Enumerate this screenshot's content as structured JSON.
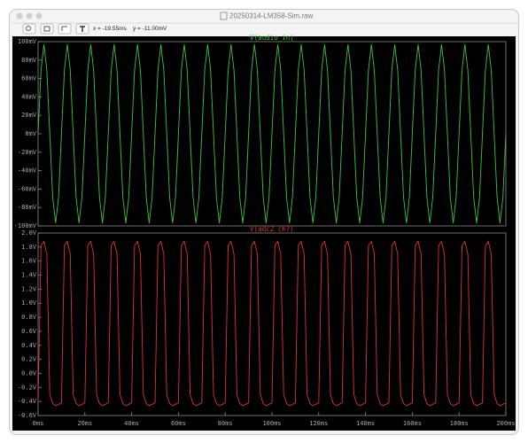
{
  "window": {
    "title": "20250314-LM358-Sim.raw",
    "cursor_x": "x = -19.55ms",
    "cursor_y": "y = -11.00mV"
  },
  "chart_data": [
    {
      "type": "line",
      "xlim": [
        0,
        200
      ],
      "ylim": [
        -100,
        100
      ],
      "yticks": [
        {
          "value": -100,
          "label": "-100mV"
        },
        {
          "value": -80,
          "label": "-80mV"
        },
        {
          "value": -60,
          "label": "-60mV"
        },
        {
          "value": -40,
          "label": "-40mV"
        },
        {
          "value": -20,
          "label": "-20mV"
        },
        {
          "value": 0,
          "label": "0mV"
        },
        {
          "value": 20,
          "label": "20mV"
        },
        {
          "value": 40,
          "label": "40mV"
        },
        {
          "value": 60,
          "label": "60mV"
        },
        {
          "value": 80,
          "label": "80mV"
        },
        {
          "value": 100,
          "label": "100mV"
        }
      ],
      "x": [
        0,
        1.25,
        2.5,
        3.75,
        5,
        6.25,
        7.5,
        8.75,
        10,
        11.25,
        12.5,
        13.75,
        15,
        16.25,
        17.5,
        18.75,
        20,
        21.25,
        22.5,
        23.75,
        25,
        26.25,
        27.5,
        28.75,
        30,
        31.25,
        32.5,
        33.75,
        35,
        36.25,
        37.5,
        38.75,
        40,
        41.25,
        42.5,
        43.75,
        45,
        46.25,
        47.5,
        48.75,
        50,
        51.25,
        52.5,
        53.75,
        55,
        56.25,
        57.5,
        58.75,
        60,
        61.25,
        62.5,
        63.75,
        65,
        66.25,
        67.5,
        68.75,
        70,
        71.25,
        72.5,
        73.75,
        75,
        76.25,
        77.5,
        78.75,
        80,
        81.25,
        82.5,
        83.75,
        85,
        86.25,
        87.5,
        88.75,
        90,
        91.25,
        92.5,
        93.75,
        95,
        96.25,
        97.5,
        98.75,
        100,
        101.25,
        102.5,
        103.75,
        105,
        106.25,
        107.5,
        108.75,
        110,
        111.25,
        112.5,
        113.75,
        115,
        116.25,
        117.5,
        118.75,
        120,
        121.25,
        122.5,
        123.75,
        125,
        126.25,
        127.5,
        128.75,
        130,
        131.25,
        132.5,
        133.75,
        135,
        136.25,
        137.5,
        138.75,
        140,
        141.25,
        142.5,
        143.75,
        145,
        146.25,
        147.5,
        148.75,
        150,
        151.25,
        152.5,
        153.75,
        155,
        156.25,
        157.5,
        158.75,
        160,
        161.25,
        162.5,
        163.75,
        165,
        166.25,
        167.5,
        168.75,
        170,
        171.25,
        172.5,
        173.75,
        175,
        176.25,
        177.5,
        178.75,
        180,
        181.25,
        182.5,
        183.75,
        185,
        186.25,
        187.5,
        188.75,
        190,
        191.25,
        192.5,
        193.75,
        195,
        196.25,
        197.5,
        198.75,
        200
      ],
      "series": [
        {
          "name": "V(audio_in)",
          "color": "#3fc23f",
          "values": [
            0,
            69,
            97,
            69,
            0,
            -69,
            -97,
            -69,
            0,
            69,
            97,
            69,
            0,
            -69,
            -97,
            -69,
            0,
            69,
            97,
            69,
            0,
            -69,
            -97,
            -69,
            0,
            69,
            97,
            69,
            0,
            -69,
            -97,
            -69,
            0,
            69,
            97,
            69,
            0,
            -69,
            -97,
            -69,
            0,
            69,
            97,
            69,
            0,
            -69,
            -97,
            -69,
            0,
            69,
            97,
            69,
            0,
            -69,
            -97,
            -69,
            0,
            69,
            97,
            69,
            0,
            -69,
            -97,
            -69,
            0,
            69,
            97,
            69,
            0,
            -69,
            -97,
            -69,
            0,
            69,
            97,
            69,
            0,
            -69,
            -97,
            -69,
            0,
            69,
            97,
            69,
            0,
            -69,
            -97,
            -69,
            0,
            69,
            97,
            69,
            0,
            -69,
            -97,
            -69,
            0,
            69,
            97,
            69,
            0,
            -69,
            -97,
            -69,
            0,
            69,
            97,
            69,
            0,
            -69,
            -97,
            -69,
            0,
            69,
            97,
            69,
            0,
            -69,
            -97,
            -69,
            0,
            69,
            97,
            69,
            0,
            -69,
            -97,
            -69,
            0,
            69,
            97,
            69,
            0,
            -69,
            -97,
            -69,
            0,
            69,
            97,
            69,
            0,
            -69,
            -97,
            -69,
            0,
            69,
            97,
            69,
            0,
            -69,
            -97,
            -69,
            0,
            69,
            97,
            69,
            0,
            -69,
            -97,
            -69,
            0
          ]
        }
      ]
    },
    {
      "type": "line",
      "xlim": [
        0,
        200
      ],
      "xticks": [
        {
          "value": 0,
          "label": "0ms"
        },
        {
          "value": 20,
          "label": "20ms"
        },
        {
          "value": 40,
          "label": "40ms"
        },
        {
          "value": 60,
          "label": "60ms"
        },
        {
          "value": 80,
          "label": "80ms"
        },
        {
          "value": 100,
          "label": "100ms"
        },
        {
          "value": 120,
          "label": "120ms"
        },
        {
          "value": 140,
          "label": "140ms"
        },
        {
          "value": 160,
          "label": "160ms"
        },
        {
          "value": 180,
          "label": "180ms"
        },
        {
          "value": 200,
          "label": "200ms"
        }
      ],
      "ylim": [
        -0.6,
        2.0
      ],
      "yticks": [
        {
          "value": -0.6,
          "label": "-0.6V"
        },
        {
          "value": -0.4,
          "label": "-0.4V"
        },
        {
          "value": -0.2,
          "label": "-0.2V"
        },
        {
          "value": 0,
          "label": "0.0V"
        },
        {
          "value": 0.2,
          "label": "0.2V"
        },
        {
          "value": 0.4,
          "label": "0.4V"
        },
        {
          "value": 0.6,
          "label": "0.6V"
        },
        {
          "value": 0.8,
          "label": "0.8V"
        },
        {
          "value": 1.0,
          "label": "1.0V"
        },
        {
          "value": 1.2,
          "label": "1.2V"
        },
        {
          "value": 1.4,
          "label": "1.4V"
        },
        {
          "value": 1.6,
          "label": "1.6V"
        },
        {
          "value": 1.8,
          "label": "1.8V"
        },
        {
          "value": 2.0,
          "label": "2.0V"
        }
      ],
      "x": [
        0,
        1.25,
        2.5,
        3.75,
        5,
        6.25,
        7.5,
        8.75,
        10,
        11.25,
        12.5,
        13.75,
        15,
        16.25,
        17.5,
        18.75,
        20,
        21.25,
        22.5,
        23.75,
        25,
        26.25,
        27.5,
        28.75,
        30,
        31.25,
        32.5,
        33.75,
        35,
        36.25,
        37.5,
        38.75,
        40,
        41.25,
        42.5,
        43.75,
        45,
        46.25,
        47.5,
        48.75,
        50,
        51.25,
        52.5,
        53.75,
        55,
        56.25,
        57.5,
        58.75,
        60,
        61.25,
        62.5,
        63.75,
        65,
        66.25,
        67.5,
        68.75,
        70,
        71.25,
        72.5,
        73.75,
        75,
        76.25,
        77.5,
        78.75,
        80,
        81.25,
        82.5,
        83.75,
        85,
        86.25,
        87.5,
        88.75,
        90,
        91.25,
        92.5,
        93.75,
        95,
        96.25,
        97.5,
        98.75,
        100,
        101.25,
        102.5,
        103.75,
        105,
        106.25,
        107.5,
        108.75,
        110,
        111.25,
        112.5,
        113.75,
        115,
        116.25,
        117.5,
        118.75,
        120,
        121.25,
        122.5,
        123.75,
        125,
        126.25,
        127.5,
        128.75,
        130,
        131.25,
        132.5,
        133.75,
        135,
        136.25,
        137.5,
        138.75,
        140,
        141.25,
        142.5,
        143.75,
        145,
        146.25,
        147.5,
        148.75,
        150,
        151.25,
        152.5,
        153.75,
        155,
        156.25,
        157.5,
        158.75,
        160,
        161.25,
        162.5,
        163.75,
        165,
        166.25,
        167.5,
        168.75,
        170,
        171.25,
        172.5,
        173.75,
        175,
        176.25,
        177.5,
        178.75,
        180,
        181.25,
        182.5,
        183.75,
        185,
        186.25,
        187.5,
        188.75,
        190,
        191.25,
        192.5,
        193.75,
        195,
        196.25,
        197.5,
        198.75,
        200
      ],
      "series": [
        {
          "name": "V(adc2_ch7)",
          "color": "#e03030",
          "values": [
            -0.42,
            1.82,
            1.88,
            1.7,
            -0.3,
            -0.43,
            -0.46,
            -0.44,
            -0.42,
            1.82,
            1.88,
            1.7,
            -0.3,
            -0.43,
            -0.46,
            -0.44,
            -0.42,
            1.82,
            1.88,
            1.7,
            -0.3,
            -0.43,
            -0.46,
            -0.44,
            -0.42,
            1.82,
            1.88,
            1.7,
            -0.3,
            -0.43,
            -0.46,
            -0.44,
            -0.42,
            1.82,
            1.88,
            1.7,
            -0.3,
            -0.43,
            -0.46,
            -0.44,
            -0.42,
            1.82,
            1.88,
            1.7,
            -0.3,
            -0.43,
            -0.46,
            -0.44,
            -0.42,
            1.82,
            1.88,
            1.7,
            -0.3,
            -0.43,
            -0.46,
            -0.44,
            -0.42,
            1.82,
            1.88,
            1.7,
            -0.3,
            -0.43,
            -0.46,
            -0.44,
            -0.42,
            1.82,
            1.88,
            1.7,
            -0.3,
            -0.43,
            -0.46,
            -0.44,
            -0.42,
            1.82,
            1.88,
            1.7,
            -0.3,
            -0.43,
            -0.46,
            -0.44,
            -0.42,
            1.82,
            1.88,
            1.7,
            -0.3,
            -0.43,
            -0.46,
            -0.44,
            -0.42,
            1.82,
            1.88,
            1.7,
            -0.3,
            -0.43,
            -0.46,
            -0.44,
            -0.42,
            1.82,
            1.88,
            1.7,
            -0.3,
            -0.43,
            -0.46,
            -0.44,
            -0.42,
            1.82,
            1.88,
            1.7,
            -0.3,
            -0.43,
            -0.46,
            -0.44,
            -0.42,
            1.82,
            1.88,
            1.7,
            -0.3,
            -0.43,
            -0.46,
            -0.44,
            -0.42,
            1.82,
            1.88,
            1.7,
            -0.3,
            -0.43,
            -0.46,
            -0.44,
            -0.42,
            1.82,
            1.88,
            1.7,
            -0.3,
            -0.43,
            -0.46,
            -0.44,
            -0.42,
            1.82,
            1.88,
            1.7,
            -0.3,
            -0.43,
            -0.46,
            -0.44,
            -0.42,
            1.82,
            1.88,
            1.7,
            -0.3,
            -0.43,
            -0.46,
            -0.44,
            -0.42,
            1.82,
            1.88,
            1.7,
            -0.3,
            -0.43,
            -0.46,
            -0.44,
            -0.42
          ]
        }
      ]
    }
  ]
}
